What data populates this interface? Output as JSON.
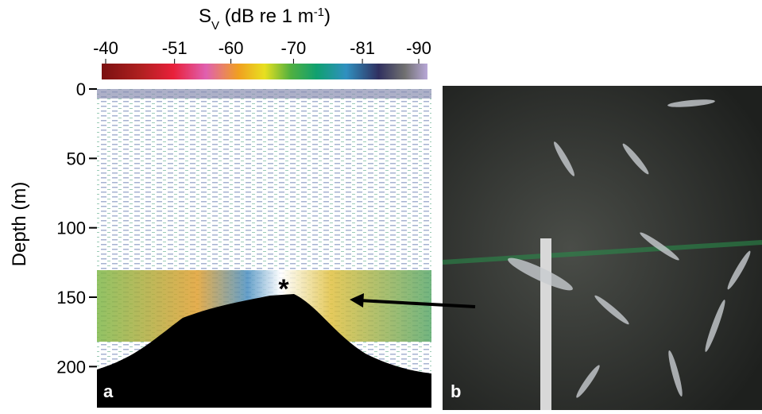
{
  "colorbar": {
    "title": {
      "symbol": "S",
      "subscript": "V",
      "unit": " (dB re 1 m",
      "superscript": "-1",
      "close": ")"
    },
    "clim": [
      -40,
      -90
    ],
    "ticks": [
      -40,
      -51,
      -60,
      -70,
      -81,
      -90
    ]
  },
  "panel_a": {
    "label": "a",
    "ylabel": "Depth (m)",
    "ylim": [
      0,
      225
    ],
    "yticks": [
      0,
      50,
      100,
      150,
      200
    ],
    "marker": "*"
  },
  "panel_b": {
    "label": "b"
  }
}
